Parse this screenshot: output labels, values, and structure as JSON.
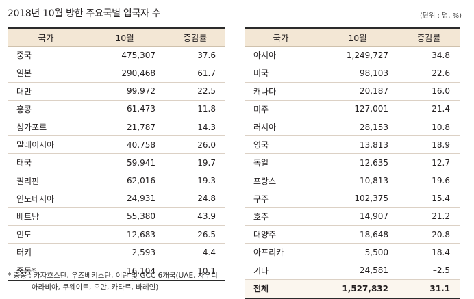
{
  "title": "2018년 10월 방한 주요국별 입국자 수",
  "unit": "(단위 : 명, %)",
  "headers": {
    "country": "국가",
    "month": "10월",
    "change": "증감률"
  },
  "left_rows": [
    {
      "country": "중국",
      "value": "475,307",
      "change": "37.6"
    },
    {
      "country": "일본",
      "value": "290,468",
      "change": "61.7"
    },
    {
      "country": "대만",
      "value": "99,972",
      "change": "22.5"
    },
    {
      "country": "홍콩",
      "value": "61,473",
      "change": "11.8"
    },
    {
      "country": "싱가포르",
      "value": "21,787",
      "change": "14.3"
    },
    {
      "country": "말레이시아",
      "value": "40,758",
      "change": "26.0"
    },
    {
      "country": "태국",
      "value": "59,941",
      "change": "19.7"
    },
    {
      "country": "필리핀",
      "value": "62,016",
      "change": "19.3"
    },
    {
      "country": "인도네시아",
      "value": "24,931",
      "change": "24.8"
    },
    {
      "country": "베트남",
      "value": "55,380",
      "change": "43.9"
    },
    {
      "country": "인도",
      "value": "12,683",
      "change": "26.5"
    },
    {
      "country": "터키",
      "value": "2,593",
      "change": "4.4"
    },
    {
      "country": "중동*",
      "value": "16,104",
      "change": "10.1"
    }
  ],
  "right_rows": [
    {
      "country": "아시아",
      "value": "1,249,727",
      "change": "34.8"
    },
    {
      "country": "미국",
      "value": "98,103",
      "change": "22.6"
    },
    {
      "country": "캐나다",
      "value": "20,187",
      "change": "16.0"
    },
    {
      "country": "미주",
      "value": "127,001",
      "change": "21.4"
    },
    {
      "country": "러시아",
      "value": "28,153",
      "change": "10.8"
    },
    {
      "country": "영국",
      "value": "13,813",
      "change": "18.9"
    },
    {
      "country": "독일",
      "value": "12,635",
      "change": "12.7"
    },
    {
      "country": "프랑스",
      "value": "10,813",
      "change": "19.6"
    },
    {
      "country": "구주",
      "value": "102,375",
      "change": "15.4"
    },
    {
      "country": "호주",
      "value": "14,907",
      "change": "21.2"
    },
    {
      "country": "대양주",
      "value": "18,648",
      "change": "20.8"
    },
    {
      "country": "아프리카",
      "value": "5,500",
      "change": "18.4"
    },
    {
      "country": "기타",
      "value": "24,581",
      "change": "–2.5"
    },
    {
      "country": "전체",
      "value": "1,527,832",
      "change": "31.1"
    }
  ],
  "footnote": {
    "line1": "* 중동 : 카자흐스탄, 우즈베키스탄, 이란 및 GCC 6개국(UAE, 사우디",
    "line2": "아라비아, 쿠웨이트, 오만, 카타르, 바레인)"
  }
}
